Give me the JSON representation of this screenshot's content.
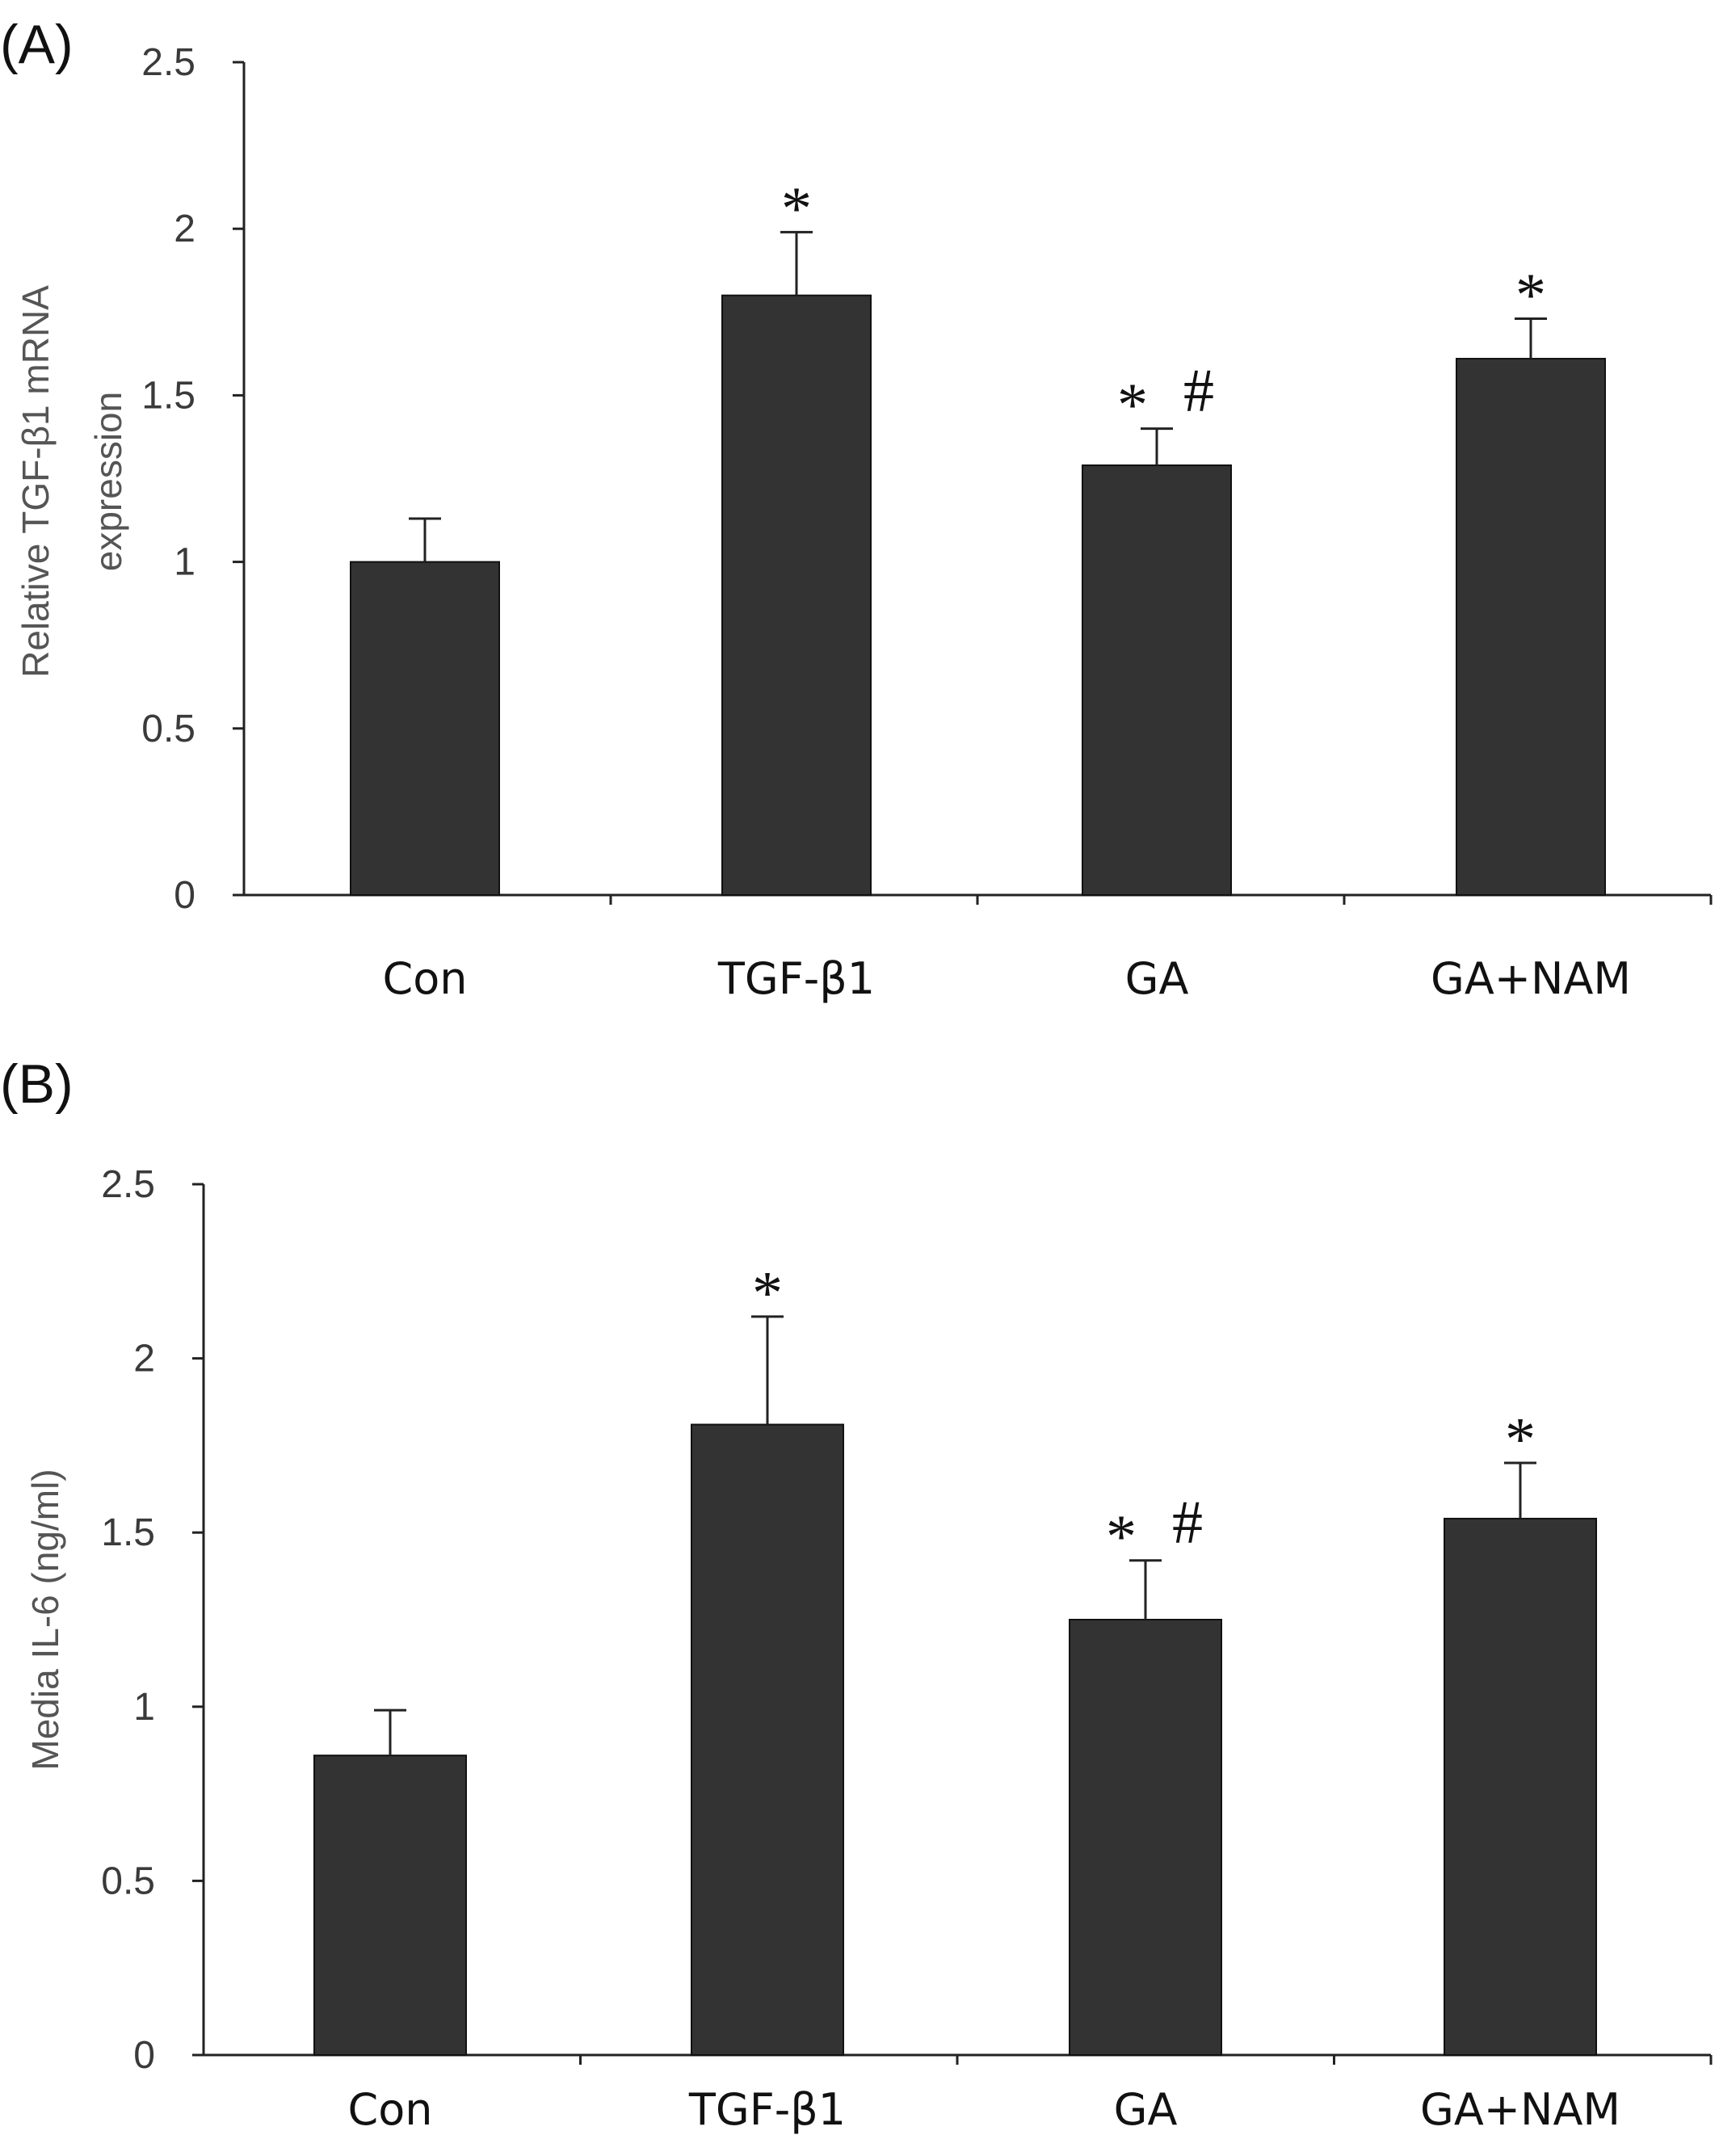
{
  "chart_data": [
    {
      "panel": "(A)",
      "type": "bar",
      "title": "",
      "xlabel": "",
      "ylabel": "Relative TGF-β1 mRNA expression",
      "ylabel_lines": [
        "Relative TGF-β1 mRNA",
        "expression"
      ],
      "ylim": [
        0,
        2.5
      ],
      "yticks": [
        0,
        0.5,
        1,
        1.5,
        2,
        2.5
      ],
      "ytick_labels": [
        "0",
        "0.5",
        "1",
        "1.5",
        "2",
        "2.5"
      ],
      "categories": [
        "Con",
        "TGF-β1",
        "GA",
        "GA+NAM"
      ],
      "values": [
        1.0,
        1.8,
        1.29,
        1.61
      ],
      "errors": [
        0.13,
        0.19,
        0.11,
        0.12
      ],
      "annotations": [
        "",
        "*",
        "* #",
        "*"
      ],
      "grid": false,
      "legend": "none",
      "bar_color": "#333333"
    },
    {
      "panel": "(B)",
      "type": "bar",
      "title": "",
      "xlabel": "",
      "ylabel": "Media IL-6 (ng/ml)",
      "ylabel_lines": [
        "Media IL-6 (ng/ml)"
      ],
      "ylim": [
        0,
        2.5
      ],
      "yticks": [
        0,
        0.5,
        1,
        1.5,
        2,
        2.5
      ],
      "ytick_labels": [
        "0",
        "0.5",
        "1",
        "1.5",
        "2",
        "2.5"
      ],
      "categories": [
        "Con",
        "TGF-β1",
        "GA",
        "GA+NAM"
      ],
      "values": [
        0.86,
        1.81,
        1.25,
        1.54
      ],
      "errors": [
        0.13,
        0.31,
        0.17,
        0.16
      ],
      "annotations": [
        "",
        "*",
        "* #",
        "*"
      ],
      "grid": false,
      "legend": "none",
      "bar_color": "#333333"
    }
  ]
}
